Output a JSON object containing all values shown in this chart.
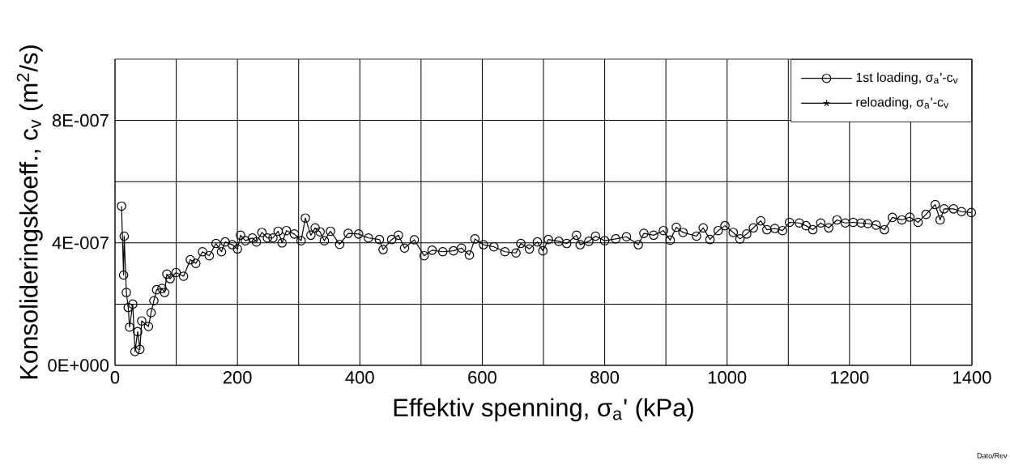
{
  "chart_data": {
    "type": "line",
    "xlabel": "Effektiv spenning, σ$_{a}$'  (kPa)",
    "ylabel": "Konsolideringskoeff., c$_{v}$  (m$^{2}$/s)",
    "annotations": [
      "Dato/Rev"
    ],
    "xlim": [
      0,
      1400
    ],
    "ylim": [
      0,
      1e-06
    ],
    "xticks": [
      0,
      {
        "value": 100,
        "label": null
      },
      200,
      {
        "value": 300,
        "label": null
      },
      400,
      {
        "value": 500,
        "label": null
      },
      600,
      {
        "value": 700,
        "label": null
      },
      800,
      {
        "value": 900,
        "label": null
      },
      1000,
      {
        "value": 1100,
        "label": null
      },
      1200,
      {
        "value": 1300,
        "label": null
      },
      1400
    ],
    "yticks": [
      {
        "value": 0,
        "label": "0E+000"
      },
      {
        "value": 2e-07,
        "label": null
      },
      {
        "value": 4e-07,
        "label": "4E-007"
      },
      {
        "value": 6e-07,
        "label": null
      },
      {
        "value": 8e-07,
        "label": "8E-007"
      }
    ],
    "grid": true,
    "legend": "top right",
    "series": [
      {
        "name": "1st loading, σ$_{a}$'-c$_{v}$",
        "color": "#000000",
        "marker": "circle",
        "x": [
          10.6,
          14,
          15,
          18.5,
          21.6,
          23.8,
          29,
          32.6,
          37,
          40.6,
          43.6,
          54.7,
          59,
          63.5,
          68,
          76.7,
          81,
          84.7,
          90,
          99.7,
          112,
          123,
          132,
          143,
          154,
          165,
          174,
          180,
          191.5,
          200,
          205,
          213,
          224.5,
          231,
          240,
          249,
          258,
          266.5,
          273,
          280,
          293,
          304,
          311,
          320,
          327,
          335,
          342,
          352,
          367,
          381,
          398,
          414,
          432,
          438,
          452,
          463,
          473,
          489,
          505,
          518,
          535.5,
          553,
          566,
          579,
          588,
          602,
          619,
          637,
          655,
          663,
          677,
          690,
          699,
          708,
          725,
          738,
          754,
          760,
          774,
          785,
          800,
          818,
          835.5,
          855,
          864,
          880,
          896,
          907,
          917,
          928,
          950,
          961,
          972,
          985.5,
          996.5,
          1010,
          1021,
          1032,
          1043,
          1055,
          1065,
          1078,
          1090.5,
          1102,
          1118,
          1129,
          1140,
          1153,
          1166,
          1179.5,
          1193,
          1206,
          1219,
          1230,
          1243.5,
          1257,
          1270,
          1285.5,
          1298.5,
          1312,
          1325,
          1340,
          1348,
          1354.5,
          1370,
          1383,
          1399
        ],
        "values": [
          5.2e-07,
          2.95e-07,
          4.22e-07,
          2.38e-07,
          1.89e-07,
          1.25e-07,
          2e-07,
          4.5e-08,
          1.1e-07,
          5.2e-08,
          1.45e-07,
          1.27e-07,
          1.72e-07,
          2.11e-07,
          2.47e-07,
          2.51e-07,
          2.38e-07,
          2.98e-07,
          2.83e-07,
          3.03e-07,
          2.91e-07,
          3.45e-07,
          3.33e-07,
          3.71e-07,
          3.58e-07,
          3.98e-07,
          3.71e-07,
          4.03e-07,
          3.94e-07,
          3.8e-07,
          4.25e-07,
          4.07e-07,
          4.16e-07,
          4.03e-07,
          4.34e-07,
          4.16e-07,
          4.16e-07,
          4.38e-07,
          4e-07,
          4.4e-07,
          4.29e-07,
          4.07e-07,
          4.81e-07,
          4.25e-07,
          4.49e-07,
          4.36e-07,
          4.07e-07,
          4.38e-07,
          3.95e-07,
          4.31e-07,
          4.29e-07,
          4.16e-07,
          4.11e-07,
          3.78e-07,
          4.11e-07,
          4.25e-07,
          3.83e-07,
          4.1e-07,
          3.58e-07,
          3.76e-07,
          3.71e-07,
          3.74e-07,
          3.83e-07,
          3.6e-07,
          4.13e-07,
          3.94e-07,
          3.87e-07,
          3.71e-07,
          3.67e-07,
          3.98e-07,
          3.8e-07,
          4.03e-07,
          3.74e-07,
          4.11e-07,
          4.05e-07,
          3.98e-07,
          4.25e-07,
          3.94e-07,
          4.05e-07,
          4.22e-07,
          4.07e-07,
          4.13e-07,
          4.2e-07,
          3.94e-07,
          4.31e-07,
          4.25e-07,
          4.4e-07,
          4.09e-07,
          4.51e-07,
          4.34e-07,
          4.22e-07,
          4.49e-07,
          4.11e-07,
          4.4e-07,
          4.56e-07,
          4.34e-07,
          4.13e-07,
          4.29e-07,
          4.49e-07,
          4.72e-07,
          4.43e-07,
          4.47e-07,
          4.4e-07,
          4.67e-07,
          4.65e-07,
          4.56e-07,
          4.43e-07,
          4.65e-07,
          4.49e-07,
          4.75e-07,
          4.65e-07,
          4.67e-07,
          4.65e-07,
          4.63e-07,
          4.58e-07,
          4.43e-07,
          4.83e-07,
          4.75e-07,
          4.84e-07,
          4.67e-07,
          4.93e-07,
          5.25e-07,
          4.75e-07,
          5.11e-07,
          5.11e-07,
          5.02e-07,
          4.99e-07
        ]
      },
      {
        "name": "reloading, σ$_{a}$'-c$_{v}$",
        "color": "#000000",
        "marker": "star"
      }
    ]
  }
}
